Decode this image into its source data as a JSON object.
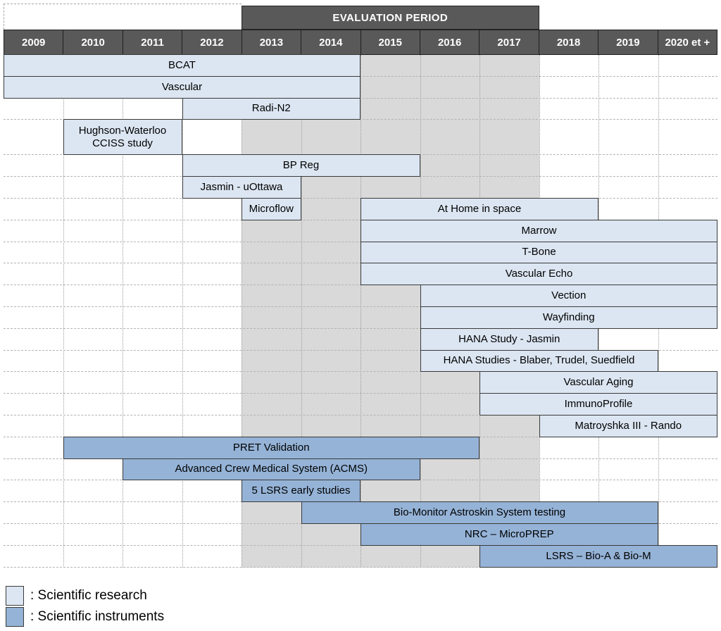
{
  "legend": {
    "research_label": ": Scientific research",
    "instruments_label": ": Scientific instruments"
  },
  "colors": {
    "research": "#dce6f2",
    "instrument": "#95b3d7",
    "header_bg": "#595959",
    "header_text": "#ffffff",
    "eval_shading": "#d9d9d9",
    "bar_border": "#3a3a3a"
  },
  "chart_data": {
    "type": "gantt",
    "columns": [
      "2009",
      "2010",
      "2011",
      "2012",
      "2013",
      "2014",
      "2015",
      "2016",
      "2017",
      "2018",
      "2019",
      "2020 et +"
    ],
    "evaluation_period": {
      "label": "EVALUATION PERIOD",
      "start": "2013",
      "end": "2017"
    },
    "categories_legend": {
      "research": "Scientific research",
      "instrument": "Scientific instruments"
    },
    "rows": [
      {
        "bars": [
          {
            "label": "BCAT",
            "category": "research",
            "start": "2009",
            "end": "2014"
          }
        ]
      },
      {
        "bars": [
          {
            "label": "Vascular",
            "category": "research",
            "start": "2009",
            "end": "2014"
          }
        ]
      },
      {
        "bars": [
          {
            "label": "Radi-N2",
            "category": "research",
            "start": "2012",
            "end": "2014"
          }
        ]
      },
      {
        "tall": true,
        "bars": [
          {
            "label": "Hughson-Waterloo CCISS study",
            "category": "research",
            "start": "2010",
            "end": "2011"
          }
        ]
      },
      {
        "bars": [
          {
            "label": "BP Reg",
            "category": "research",
            "start": "2012",
            "end": "2015"
          }
        ]
      },
      {
        "bars": [
          {
            "label": "Jasmin - uOttawa",
            "category": "research",
            "start": "2012",
            "end": "2013"
          }
        ]
      },
      {
        "bars": [
          {
            "label": "Microflow",
            "category": "research",
            "start": "2013",
            "end": "2013"
          },
          {
            "label": "At Home in space",
            "category": "research",
            "start": "2015",
            "end": "2018"
          }
        ]
      },
      {
        "bars": [
          {
            "label": "Marrow",
            "category": "research",
            "start": "2015",
            "end": "2020 et +"
          }
        ]
      },
      {
        "bars": [
          {
            "label": "T-Bone",
            "category": "research",
            "start": "2015",
            "end": "2020 et +"
          }
        ]
      },
      {
        "bars": [
          {
            "label": "Vascular Echo",
            "category": "research",
            "start": "2015",
            "end": "2020 et +"
          }
        ]
      },
      {
        "bars": [
          {
            "label": "Vection",
            "category": "research",
            "start": "2016",
            "end": "2020 et +"
          }
        ]
      },
      {
        "bars": [
          {
            "label": "Wayfinding",
            "category": "research",
            "start": "2016",
            "end": "2020 et +"
          }
        ]
      },
      {
        "bars": [
          {
            "label": "HANA Study - Jasmin",
            "category": "research",
            "start": "2016",
            "end": "2018"
          }
        ]
      },
      {
        "bars": [
          {
            "label": "HANA Studies - Blaber, Trudel, Suedfield",
            "category": "research",
            "start": "2016",
            "end": "2019"
          }
        ]
      },
      {
        "bars": [
          {
            "label": "Vascular Aging",
            "category": "research",
            "start": "2017",
            "end": "2020 et +"
          }
        ]
      },
      {
        "bars": [
          {
            "label": "ImmunoProfile",
            "category": "research",
            "start": "2017",
            "end": "2020 et +"
          }
        ]
      },
      {
        "bars": [
          {
            "label": "Matroyshka III - Rando",
            "category": "research",
            "start": "2018",
            "end": "2020 et +"
          }
        ]
      },
      {
        "bars": [
          {
            "label": "PRET Validation",
            "category": "instrument",
            "start": "2010",
            "end": "2016"
          }
        ]
      },
      {
        "bars": [
          {
            "label": "Advanced Crew Medical System (ACMS)",
            "category": "instrument",
            "start": "2011",
            "end": "2015"
          }
        ]
      },
      {
        "bars": [
          {
            "label": "5 LSRS early studies",
            "category": "instrument",
            "start": "2013",
            "end": "2014"
          }
        ]
      },
      {
        "bars": [
          {
            "label": "Bio-Monitor Astroskin System testing",
            "category": "instrument",
            "start": "2014",
            "end": "2019"
          }
        ]
      },
      {
        "bars": [
          {
            "label": "NRC – MicroPREP",
            "category": "instrument",
            "start": "2015",
            "end": "2019"
          }
        ]
      },
      {
        "bars": [
          {
            "label": "LSRS – Bio-A & Bio-M",
            "category": "instrument",
            "start": "2017",
            "end": "2020 et +"
          }
        ]
      }
    ]
  }
}
